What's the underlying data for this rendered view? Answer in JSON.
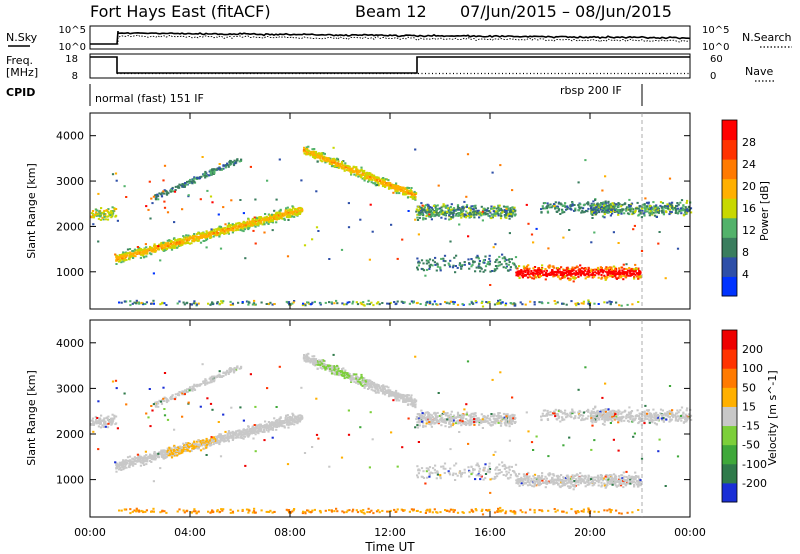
{
  "header": {
    "radar": "Fort Hays East (fitACF)",
    "beam": "Beam 12",
    "dates": "07/Jun/2015 – 08/Jun/2015"
  },
  "noise_panel": {
    "left_label": "N.Sky",
    "right_label": "N.Search",
    "left_ticks": [
      "10^5",
      "10^0"
    ],
    "right_ticks": [
      "10^5",
      "10^0"
    ]
  },
  "freq_panel": {
    "left_label_line1": "Freq.",
    "left_label_line2": "[MHz]",
    "right_label": "Nave",
    "left_ticks": [
      "18",
      "8"
    ],
    "right_ticks": [
      "60",
      "0"
    ]
  },
  "cpid_panel": {
    "label": "CPID",
    "mode1": "normal (fast) 151 IF",
    "mode2": "rbsp 200 IF"
  },
  "chart_data": [
    {
      "type": "heatmap",
      "name": "power",
      "ylabel": "Slant Range [km]",
      "xlabel": "",
      "y_ticks": [
        "1000",
        "2000",
        "3000",
        "4000"
      ],
      "colorbar_label": "Power [dB]",
      "colorbar_ticks": [
        "4",
        "8",
        "12",
        "16",
        "20",
        "24",
        "28"
      ],
      "colors": [
        "#0033ff",
        "#2e4fa8",
        "#3a7d5e",
        "#52b26a",
        "#c8d800",
        "#ffb000",
        "#ff7a00",
        "#ff3300",
        "#ff0000"
      ]
    },
    {
      "type": "heatmap",
      "name": "velocity",
      "ylabel": "Slant Range [km]",
      "xlabel": "Time UT",
      "y_ticks": [
        "1000",
        "2000",
        "3000",
        "4000"
      ],
      "x_ticks": [
        "00:00",
        "04:00",
        "08:00",
        "12:00",
        "16:00",
        "20:00",
        "00:00"
      ],
      "colorbar_label": "Velocity [m s^-1]",
      "colorbar_ticks": [
        "200",
        "100",
        "50",
        "15",
        "-15",
        "-50",
        "-100",
        "-200"
      ],
      "colors": [
        "#1a2fd6",
        "#2f7a4a",
        "#3fa83a",
        "#7ccf3a",
        "#c8c8c8",
        "#ffb000",
        "#ff7a00",
        "#ff3300",
        "#ee0000"
      ]
    }
  ]
}
